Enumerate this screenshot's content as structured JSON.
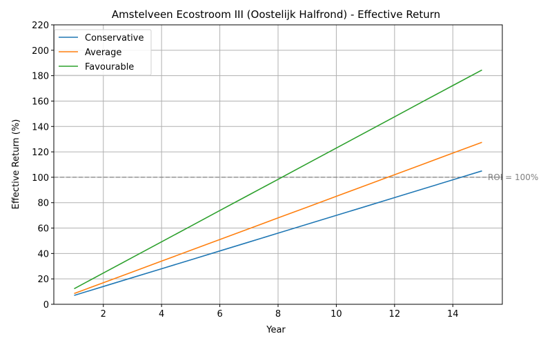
{
  "chart_data": {
    "type": "line",
    "title": "Amstelveen Ecostroom III (Oostelijk Halfrond) - Effective Return",
    "xlabel": "Year",
    "ylabel": "Effective Return (%)",
    "x": [
      1,
      2,
      3,
      4,
      5,
      6,
      7,
      8,
      9,
      10,
      11,
      12,
      13,
      14,
      15
    ],
    "xlim": [
      0.3,
      15.7
    ],
    "ylim": [
      0,
      220
    ],
    "xticks": [
      2,
      4,
      6,
      8,
      10,
      12,
      14
    ],
    "yticks": [
      0,
      20,
      40,
      60,
      80,
      100,
      120,
      140,
      160,
      180,
      200,
      220
    ],
    "grid": true,
    "legend_position": "top-left",
    "series": [
      {
        "name": "Conservative",
        "color": "#1f77b4",
        "values": [
          7.0,
          14.0,
          21.0,
          28.0,
          35.0,
          42.0,
          49.0,
          56.0,
          63.0,
          70.0,
          77.0,
          84.0,
          91.0,
          98.0,
          105.0
        ]
      },
      {
        "name": "Average",
        "color": "#ff7f0e",
        "values": [
          8.5,
          17.0,
          25.5,
          34.0,
          42.5,
          51.0,
          59.5,
          68.0,
          76.5,
          85.0,
          93.5,
          102.0,
          110.5,
          119.0,
          127.5
        ]
      },
      {
        "name": "Favourable",
        "color": "#2ca02c",
        "values": [
          12.3,
          24.6,
          36.9,
          49.2,
          61.5,
          73.8,
          86.1,
          98.4,
          110.7,
          123.0,
          135.3,
          147.6,
          159.9,
          172.2,
          184.5
        ]
      }
    ],
    "reference_line": {
      "y": 100,
      "label": "ROI = 100%",
      "color": "#808080"
    }
  }
}
